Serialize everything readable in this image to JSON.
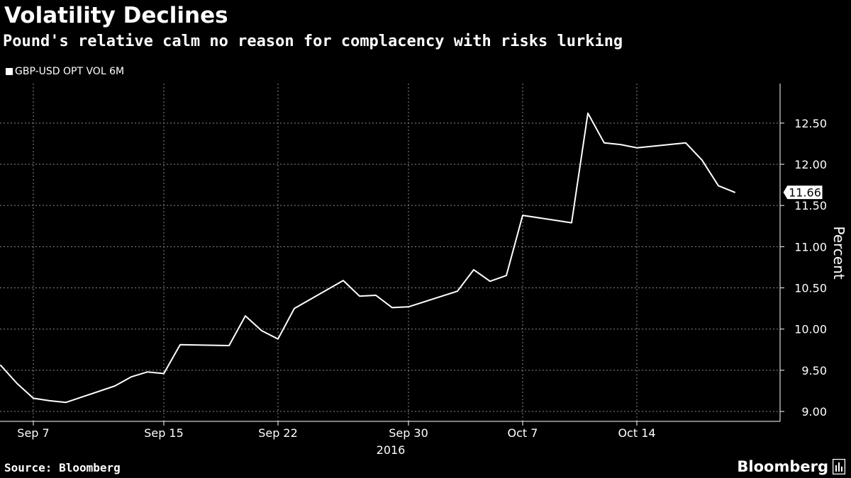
{
  "header": {
    "title": "Volatility Declines",
    "subtitle": "Pound's relative calm no reason for complacency with risks lurking"
  },
  "legend": {
    "label": "GBP-USD OPT VOL 6M"
  },
  "footer": {
    "source": "Source: Bloomberg",
    "brand": "Bloomberg"
  },
  "colors": {
    "background": "#000000",
    "line": "#ffffff",
    "grid": "#8a8a8a",
    "text": "#ffffff"
  },
  "chart_data": {
    "type": "line",
    "title": "Volatility Declines",
    "subtitle": "Pound's relative calm no reason for complacency with risks lurking",
    "ylabel": "Percent",
    "xlabel": "",
    "year_label": "2016",
    "y_axis_side": "right",
    "ylim": [
      8.88,
      12.98
    ],
    "yticks": [
      9.0,
      9.5,
      10.0,
      10.5,
      11.0,
      11.5,
      12.0,
      12.5
    ],
    "ytick_labels": [
      "9.00",
      "9.50",
      "10.00",
      "10.50",
      "11.00",
      "11.50",
      "12.00",
      "12.50"
    ],
    "xlim": [
      "2016-09-05",
      "2016-10-21"
    ],
    "xticks": [
      {
        "date": "2016-09-07",
        "label": "Sep 7"
      },
      {
        "date": "2016-09-15",
        "label": "Sep 15"
      },
      {
        "date": "2016-09-22",
        "label": "Sep 22"
      },
      {
        "date": "2016-09-30",
        "label": "Sep 30"
      },
      {
        "date": "2016-10-07",
        "label": "Oct 7"
      },
      {
        "date": "2016-10-14",
        "label": "Oct 14"
      }
    ],
    "grid": true,
    "legend_position": "top-left",
    "last_value_label": "11.66",
    "series": [
      {
        "name": "GBP-USD OPT VOL 6M",
        "x": [
          "2016-09-05",
          "2016-09-06",
          "2016-09-07",
          "2016-09-08",
          "2016-09-09",
          "2016-09-12",
          "2016-09-13",
          "2016-09-14",
          "2016-09-15",
          "2016-09-16",
          "2016-09-19",
          "2016-09-20",
          "2016-09-21",
          "2016-09-22",
          "2016-09-23",
          "2016-09-26",
          "2016-09-27",
          "2016-09-28",
          "2016-09-29",
          "2016-09-30",
          "2016-10-03",
          "2016-10-04",
          "2016-10-05",
          "2016-10-06",
          "2016-10-07",
          "2016-10-10",
          "2016-10-11",
          "2016-10-12",
          "2016-10-13",
          "2016-10-14",
          "2016-10-17",
          "2016-10-18",
          "2016-10-19",
          "2016-10-20"
        ],
        "y": [
          9.56,
          9.34,
          9.16,
          9.13,
          9.11,
          9.31,
          9.42,
          9.48,
          9.46,
          9.81,
          9.8,
          10.16,
          9.98,
          9.88,
          10.25,
          10.59,
          10.4,
          10.41,
          10.26,
          10.27,
          10.46,
          10.72,
          10.58,
          10.65,
          11.38,
          11.29,
          12.62,
          12.26,
          12.24,
          12.2,
          12.26,
          12.05,
          11.74,
          11.66
        ]
      }
    ]
  }
}
